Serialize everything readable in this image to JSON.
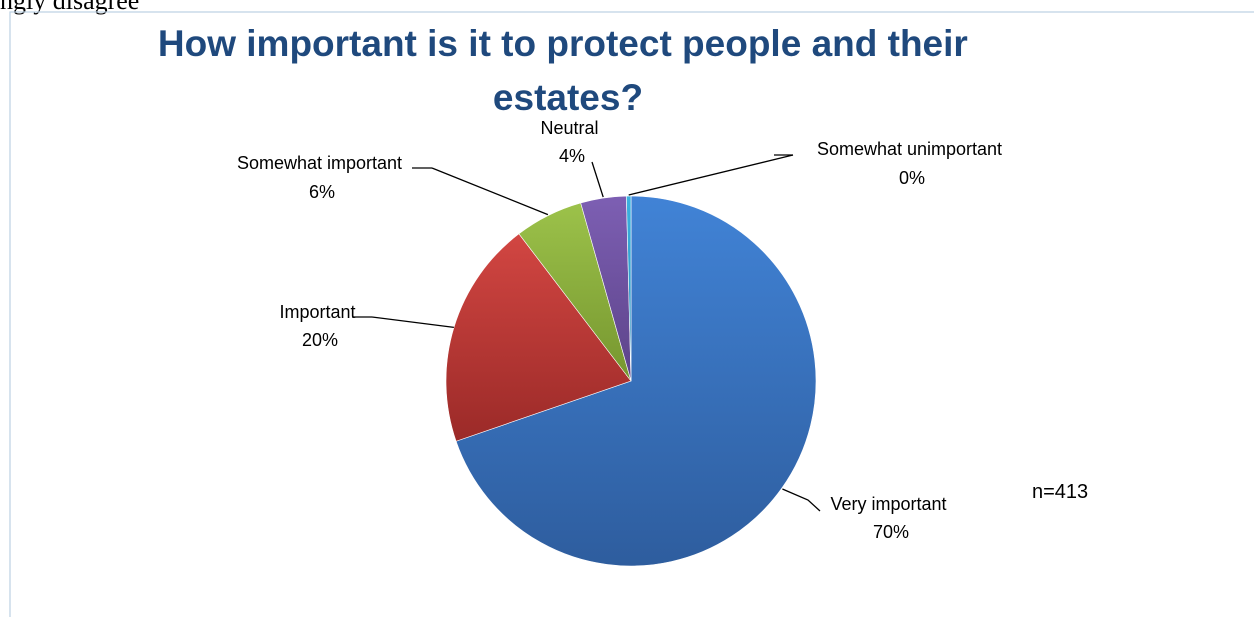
{
  "document": {
    "text_above": "ngly disagree"
  },
  "chart_data": {
    "type": "pie",
    "title_lines": [
      "How important is it to protect people and their",
      "estates?"
    ],
    "slices": [
      {
        "label": "Very important",
        "percent_label": "70%",
        "value": 70,
        "color": "#3a70bd"
      },
      {
        "label": "Important",
        "percent_label": "20%",
        "value": 20,
        "color": "#b83734"
      },
      {
        "label": "Somewhat important",
        "percent_label": "6%",
        "value": 6,
        "color": "#8aae3e"
      },
      {
        "label": "Neutral",
        "percent_label": "4%",
        "value": 4,
        "color": "#6e51a0"
      },
      {
        "label": "Somewhat unimportant",
        "percent_label": "0%",
        "value": 0.4,
        "color": "#2f9fcf"
      }
    ],
    "start_angle_deg": 90,
    "direction": "clockwise",
    "annotation": "n=413"
  }
}
